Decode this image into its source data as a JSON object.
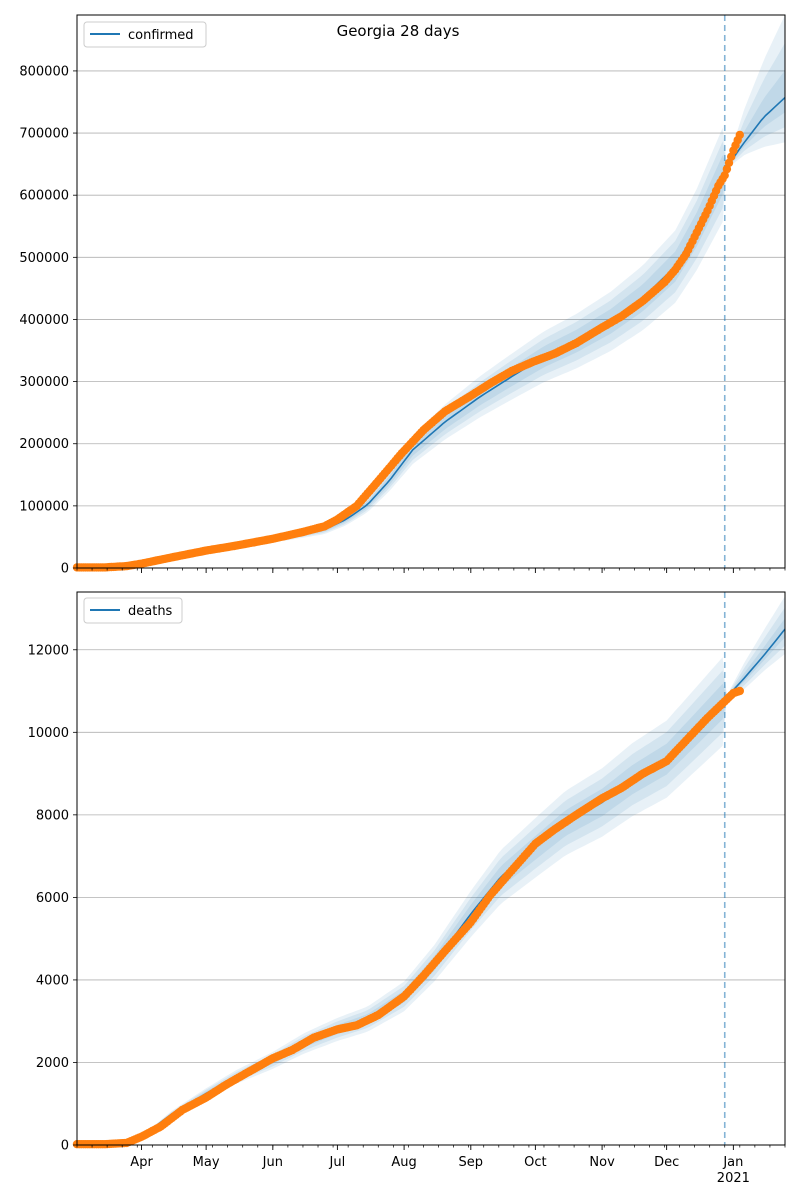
{
  "figure": {
    "title": "Georgia 28 days"
  },
  "colors": {
    "model": "#1f77b4",
    "observed": "#ff7f0e",
    "grid": "#b0b0b0",
    "band": "#1f77b4"
  },
  "x_axis": {
    "months": [
      {
        "label": "Apr",
        "date": "2020-04-01"
      },
      {
        "label": "May",
        "date": "2020-05-01"
      },
      {
        "label": "Jun",
        "date": "2020-06-01"
      },
      {
        "label": "Jul",
        "date": "2020-07-01"
      },
      {
        "label": "Aug",
        "date": "2020-08-01"
      },
      {
        "label": "Sep",
        "date": "2020-09-01"
      },
      {
        "label": "Oct",
        "date": "2020-10-01"
      },
      {
        "label": "Nov",
        "date": "2020-11-01"
      },
      {
        "label": "Dec",
        "date": "2020-12-01"
      },
      {
        "label": "Jan",
        "date": "2021-01-01"
      }
    ],
    "year_label": "2021",
    "range": [
      "2020-03-02",
      "2021-01-25"
    ]
  },
  "chart_data": [
    {
      "type": "line",
      "name": "confirmed",
      "legend": "top-left",
      "grid": "y",
      "ylim": [
        0,
        890000
      ],
      "yticks": [
        0,
        100000,
        200000,
        300000,
        400000,
        500000,
        600000,
        700000,
        800000
      ],
      "ytick_labels": [
        "0",
        "100000",
        "200000",
        "300000",
        "400000",
        "500000",
        "600000",
        "700000",
        "800000"
      ],
      "forecast_start": "2020-12-28",
      "model_x": [
        "2020-03-02",
        "2020-03-25",
        "2020-04-15",
        "2020-05-01",
        "2020-05-20",
        "2020-06-10",
        "2020-06-25",
        "2020-07-05",
        "2020-07-15",
        "2020-07-25",
        "2020-08-05",
        "2020-08-20",
        "2020-09-05",
        "2020-09-20",
        "2020-10-05",
        "2020-10-20",
        "2020-11-05",
        "2020-11-20",
        "2020-12-05",
        "2020-12-15",
        "2020-12-28",
        "2021-01-05",
        "2021-01-15",
        "2021-01-25"
      ],
      "model_y": [
        0,
        3000,
        18000,
        28000,
        40000,
        52000,
        62000,
        78000,
        102000,
        140000,
        190000,
        235000,
        275000,
        308000,
        340000,
        365000,
        397000,
        435000,
        485000,
        545000,
        640000,
        680000,
        725000,
        757000
      ],
      "model_rel_band": [
        0.12,
        0.085,
        0.05
      ],
      "forecast_band_top": [
        640000,
        740000,
        820000,
        890000
      ],
      "forecast_band_bottom": [
        640000,
        665000,
        678000,
        685000
      ],
      "observed_x": [
        "2020-03-02",
        "2020-03-15",
        "2020-03-25",
        "2020-04-01",
        "2020-04-15",
        "2020-05-01",
        "2020-05-15",
        "2020-06-01",
        "2020-06-15",
        "2020-06-25",
        "2020-07-01",
        "2020-07-10",
        "2020-07-20",
        "2020-07-31",
        "2020-08-10",
        "2020-08-20",
        "2020-08-31",
        "2020-09-10",
        "2020-09-20",
        "2020-09-30",
        "2020-10-10",
        "2020-10-20",
        "2020-10-31",
        "2020-11-10",
        "2020-11-20",
        "2020-11-30",
        "2020-12-05",
        "2020-12-10",
        "2020-12-15",
        "2020-12-20",
        "2020-12-25",
        "2020-12-28",
        "2021-01-01",
        "2021-01-04"
      ],
      "observed_y": [
        1000,
        1000,
        3000,
        7000,
        17000,
        28000,
        36000,
        47000,
        58000,
        67000,
        78000,
        100000,
        140000,
        185000,
        222000,
        252000,
        275000,
        297000,
        317000,
        332000,
        345000,
        362000,
        385000,
        405000,
        430000,
        460000,
        480000,
        505000,
        540000,
        575000,
        615000,
        632000,
        672000,
        697000
      ]
    },
    {
      "type": "line",
      "name": "deaths",
      "legend": "top-left",
      "grid": "y",
      "ylim": [
        0,
        13400
      ],
      "yticks": [
        0,
        2000,
        4000,
        6000,
        8000,
        10000,
        12000
      ],
      "ytick_labels": [
        "0",
        "2000",
        "4000",
        "6000",
        "8000",
        "10000",
        "12000"
      ],
      "forecast_start": "2020-12-28",
      "model_x": [
        "2020-03-02",
        "2020-03-20",
        "2020-04-01",
        "2020-04-15",
        "2020-05-01",
        "2020-05-15",
        "2020-06-01",
        "2020-06-15",
        "2020-07-01",
        "2020-07-15",
        "2020-08-01",
        "2020-08-15",
        "2020-09-01",
        "2020-09-15",
        "2020-10-01",
        "2020-10-15",
        "2020-11-01",
        "2020-11-15",
        "2020-12-01",
        "2020-12-15",
        "2020-12-28",
        "2021-01-05",
        "2021-01-15",
        "2021-01-25"
      ],
      "model_y": [
        0,
        30,
        200,
        750,
        1250,
        1650,
        2050,
        2450,
        2800,
        3050,
        3600,
        4400,
        5600,
        6500,
        7200,
        7800,
        8300,
        8850,
        9350,
        10100,
        10800,
        11250,
        11850,
        12500
      ],
      "model_rel_band": [
        0.1,
        0.07,
        0.04
      ],
      "forecast_band_top": [
        10800,
        11700,
        12500,
        13300
      ],
      "forecast_band_bottom": [
        10800,
        11050,
        11500,
        11900
      ],
      "observed_x": [
        "2020-03-02",
        "2020-03-15",
        "2020-03-25",
        "2020-04-01",
        "2020-04-10",
        "2020-04-20",
        "2020-05-01",
        "2020-05-10",
        "2020-05-20",
        "2020-06-01",
        "2020-06-10",
        "2020-06-20",
        "2020-07-01",
        "2020-07-10",
        "2020-07-20",
        "2020-08-01",
        "2020-08-10",
        "2020-08-20",
        "2020-09-01",
        "2020-09-10",
        "2020-09-20",
        "2020-10-01",
        "2020-10-10",
        "2020-10-20",
        "2020-11-01",
        "2020-11-10",
        "2020-11-20",
        "2020-12-01",
        "2020-12-10",
        "2020-12-20",
        "2020-12-28",
        "2021-01-01",
        "2021-01-04"
      ],
      "observed_y": [
        20,
        20,
        50,
        200,
        450,
        850,
        1150,
        1450,
        1750,
        2100,
        2300,
        2600,
        2800,
        2900,
        3150,
        3600,
        4100,
        4700,
        5400,
        6050,
        6650,
        7300,
        7650,
        8000,
        8400,
        8650,
        9000,
        9300,
        9800,
        10350,
        10750,
        10950,
        11000
      ]
    }
  ]
}
